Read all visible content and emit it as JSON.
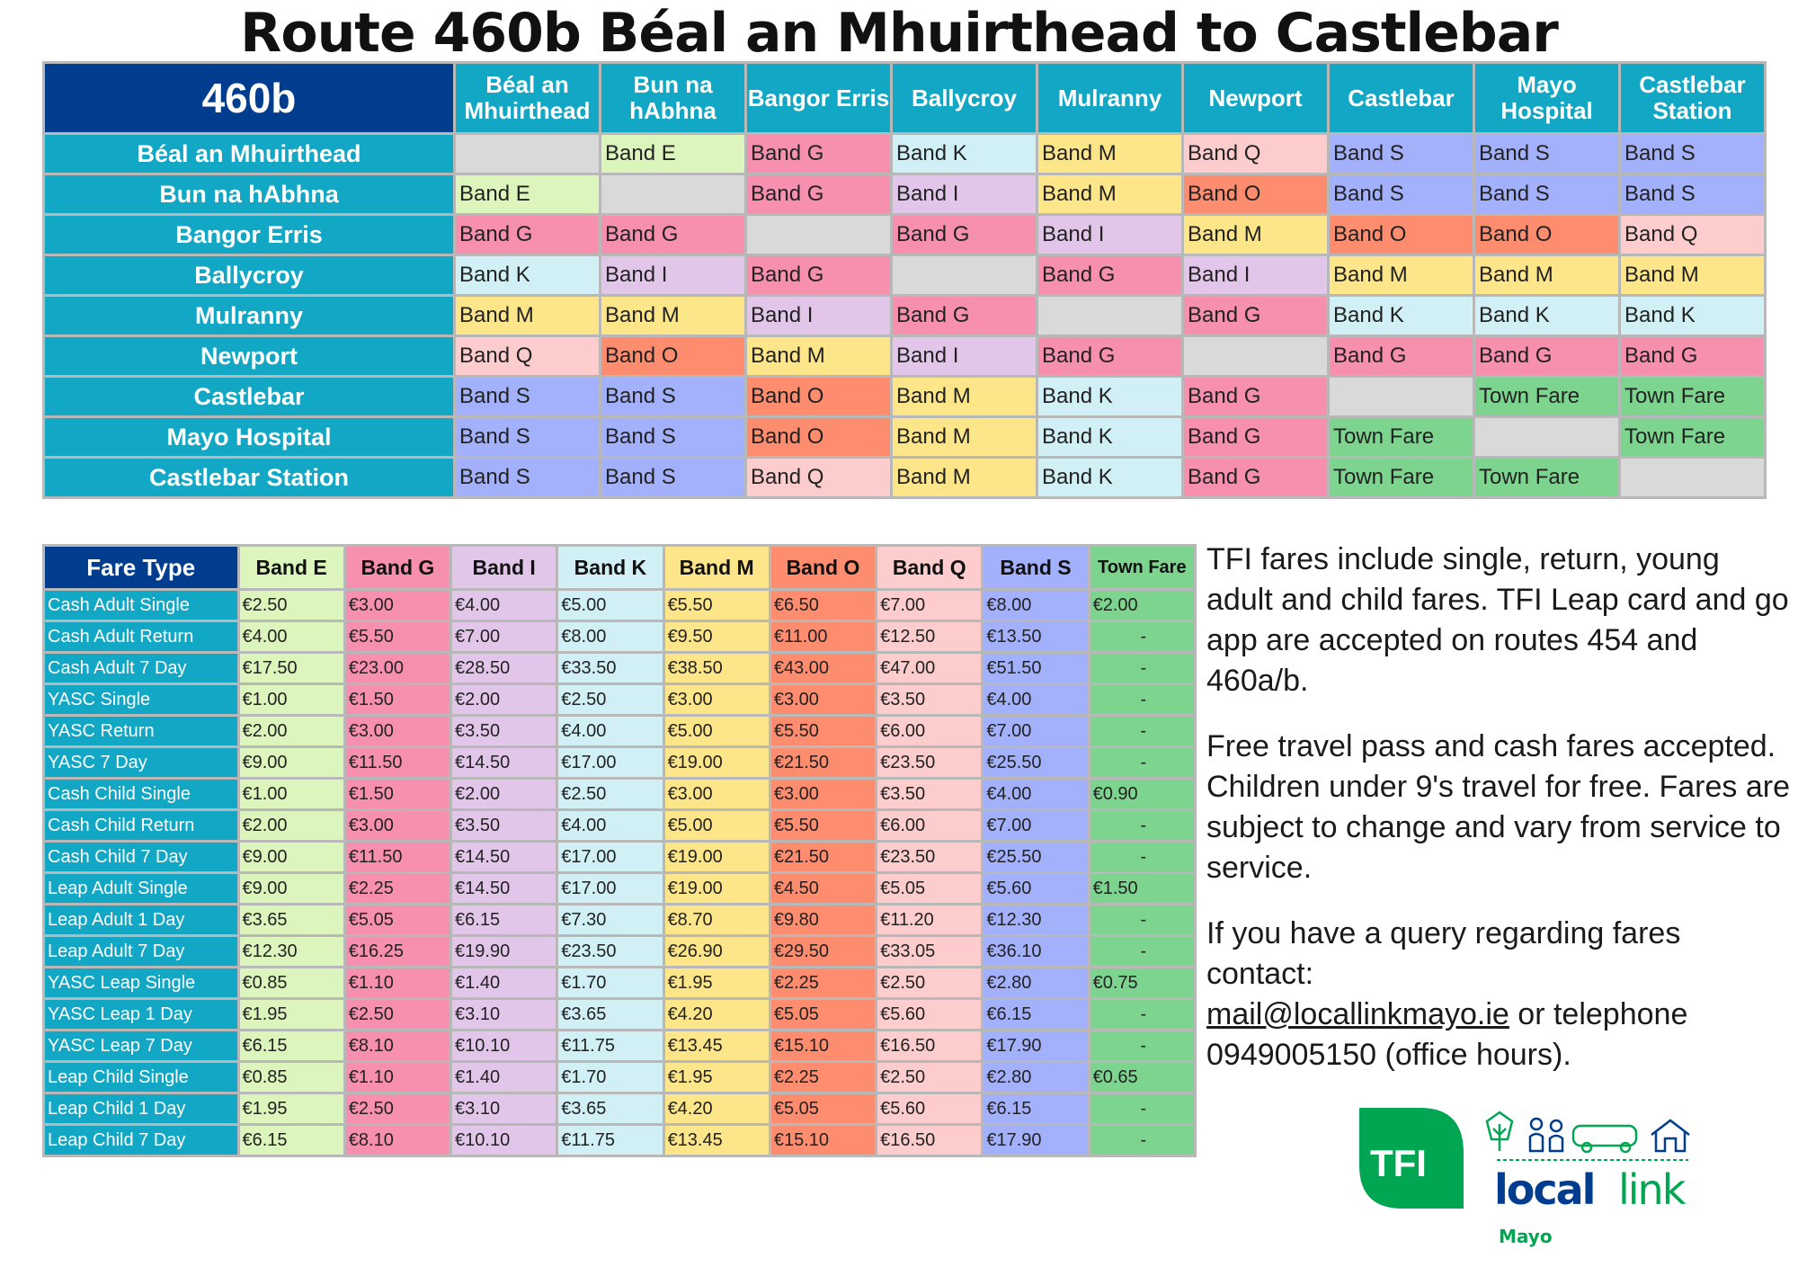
{
  "title": "Route 460b Béal an Mhuirthead to Castlebar",
  "colors": {
    "Band E": "#dcf5bc",
    "Band G": "#f78fae",
    "Band I": "#e2c6ea",
    "Band K": "#d0f0f6",
    "Band M": "#fde58a",
    "Band O": "#fe8c6e",
    "Band Q": "#fdcccc",
    "Band S": "#a3b1fc",
    "Town Fare": "#7dd48f",
    "blank": "#d9d9d9",
    "header": "#12a7c4",
    "corner": "#003d8f"
  },
  "matrix": {
    "corner": "460b",
    "columns": [
      "Béal an Mhuirthead",
      "Bun na hAbhna",
      "Bangor Erris",
      "Ballycroy",
      "Mulranny",
      "Newport",
      "Castlebar",
      "Mayo Hospital",
      "Castlebar Station"
    ],
    "rows": [
      {
        "stop": "Béal an Mhuirthead",
        "cells": [
          "",
          "Band E",
          "Band G",
          "Band K",
          "Band M",
          "Band Q",
          "Band S",
          "Band S",
          "Band S"
        ]
      },
      {
        "stop": "Bun na hAbhna",
        "cells": [
          "Band E",
          "",
          "Band G",
          "Band I",
          "Band M",
          "Band O",
          "Band S",
          "Band S",
          "Band S"
        ]
      },
      {
        "stop": "Bangor Erris",
        "cells": [
          "Band G",
          "Band G",
          "",
          "Band G",
          "Band I",
          "Band M",
          "Band O",
          "Band O",
          "Band Q"
        ]
      },
      {
        "stop": "Ballycroy",
        "cells": [
          "Band K",
          "Band I",
          "Band G",
          "",
          "Band G",
          "Band I",
          "Band M",
          "Band M",
          "Band M"
        ]
      },
      {
        "stop": "Mulranny",
        "cells": [
          "Band M",
          "Band M",
          "Band I",
          "Band G",
          "",
          "Band G",
          "Band K",
          "Band K",
          "Band K"
        ]
      },
      {
        "stop": "Newport",
        "cells": [
          "Band Q",
          "Band O",
          "Band M",
          "Band I",
          "Band G",
          "",
          "Band G",
          "Band G",
          "Band G"
        ]
      },
      {
        "stop": "Castlebar",
        "cells": [
          "Band S",
          "Band S",
          "Band O",
          "Band M",
          "Band K",
          "Band G",
          "",
          "Town Fare",
          "Town Fare"
        ]
      },
      {
        "stop": "Mayo Hospital",
        "cells": [
          "Band S",
          "Band S",
          "Band O",
          "Band M",
          "Band K",
          "Band G",
          "Town Fare",
          "",
          "Town Fare"
        ]
      },
      {
        "stop": "Castlebar Station",
        "cells": [
          "Band S",
          "Band S",
          "Band Q",
          "Band M",
          "Band K",
          "Band G",
          "Town Fare",
          "Town Fare",
          ""
        ]
      }
    ]
  },
  "fares": {
    "corner": "Fare Type",
    "columns": [
      "Band E",
      "Band G",
      "Band I",
      "Band K",
      "Band M",
      "Band O",
      "Band Q",
      "Band S",
      "Town Fare"
    ],
    "rows": [
      {
        "type": "Cash Adult Single",
        "values": [
          "€2.50",
          "€3.00",
          "€4.00",
          "€5.00",
          "€5.50",
          "€6.50",
          "€7.00",
          "€8.00",
          "€2.00"
        ]
      },
      {
        "type": "Cash Adult Return",
        "values": [
          "€4.00",
          "€5.50",
          "€7.00",
          "€8.00",
          "€9.50",
          "€11.00",
          "€12.50",
          "€13.50",
          "-"
        ]
      },
      {
        "type": "Cash Adult 7 Day",
        "values": [
          "€17.50",
          "€23.00",
          "€28.50",
          "€33.50",
          "€38.50",
          "€43.00",
          "€47.00",
          "€51.50",
          "-"
        ]
      },
      {
        "type": "YASC Single",
        "values": [
          "€1.00",
          "€1.50",
          "€2.00",
          "€2.50",
          "€3.00",
          "€3.00",
          "€3.50",
          "€4.00",
          "-"
        ]
      },
      {
        "type": "YASC Return",
        "values": [
          "€2.00",
          "€3.00",
          "€3.50",
          "€4.00",
          "€5.00",
          "€5.50",
          "€6.00",
          "€7.00",
          "-"
        ]
      },
      {
        "type": "YASC 7 Day",
        "values": [
          "€9.00",
          "€11.50",
          "€14.50",
          "€17.00",
          "€19.00",
          "€21.50",
          "€23.50",
          "€25.50",
          "-"
        ]
      },
      {
        "type": "Cash Child Single",
        "values": [
          "€1.00",
          "€1.50",
          "€2.00",
          "€2.50",
          "€3.00",
          "€3.00",
          "€3.50",
          "€4.00",
          "€0.90"
        ]
      },
      {
        "type": "Cash Child Return",
        "values": [
          "€2.00",
          "€3.00",
          "€3.50",
          "€4.00",
          "€5.00",
          "€5.50",
          "€6.00",
          "€7.00",
          "-"
        ]
      },
      {
        "type": "Cash Child 7 Day",
        "values": [
          "€9.00",
          "€11.50",
          "€14.50",
          "€17.00",
          "€19.00",
          "€21.50",
          "€23.50",
          "€25.50",
          "-"
        ]
      },
      {
        "type": "Leap Adult Single",
        "values": [
          "€9.00",
          "€2.25",
          "€14.50",
          "€17.00",
          "€19.00",
          "€4.50",
          "€5.05",
          "€5.60",
          "€1.50"
        ]
      },
      {
        "type": "Leap Adult 1 Day",
        "values": [
          "€3.65",
          "€5.05",
          "€6.15",
          "€7.30",
          "€8.70",
          "€9.80",
          "€11.20",
          "€12.30",
          "-"
        ]
      },
      {
        "type": "Leap Adult 7 Day",
        "values": [
          "€12.30",
          "€16.25",
          "€19.90",
          "€23.50",
          "€26.90",
          "€29.50",
          "€33.05",
          "€36.10",
          "-"
        ]
      },
      {
        "type": "YASC Leap Single",
        "values": [
          "€0.85",
          "€1.10",
          "€1.40",
          "€1.70",
          "€1.95",
          "€2.25",
          "€2.50",
          "€2.80",
          "€0.75"
        ]
      },
      {
        "type": "YASC Leap 1 Day",
        "values": [
          "€1.95",
          "€2.50",
          "€3.10",
          "€3.65",
          "€4.20",
          "€5.05",
          "€5.60",
          "€6.15",
          "-"
        ]
      },
      {
        "type": "YASC Leap 7 Day",
        "values": [
          "€6.15",
          "€8.10",
          "€10.10",
          "€11.75",
          "€13.45",
          "€15.10",
          "€16.50",
          "€17.90",
          "-"
        ]
      },
      {
        "type": "Leap Child Single",
        "values": [
          "€0.85",
          "€1.10",
          "€1.40",
          "€1.70",
          "€1.95",
          "€2.25",
          "€2.50",
          "€2.80",
          "€0.65"
        ]
      },
      {
        "type": "Leap Child 1 Day",
        "values": [
          "€1.95",
          "€2.50",
          "€3.10",
          "€3.65",
          "€4.20",
          "€5.05",
          "€5.60",
          "€6.15",
          "-"
        ]
      },
      {
        "type": "Leap Child 7 Day",
        "values": [
          "€6.15",
          "€8.10",
          "€10.10",
          "€11.75",
          "€13.45",
          "€15.10",
          "€16.50",
          "€17.90",
          "-"
        ]
      }
    ]
  },
  "info": {
    "p1": "TFI fares include single, return, young adult and child fares. TFI Leap card and go app are accepted on routes 454 and 460a/b.",
    "p2": "Free travel pass and cash fares accepted. Children under 9's travel for free. Fares are subject to change and vary from service to service.",
    "p3_before": "If you have a query regarding fares contact:",
    "email": "mail@locallinkmayo.ie",
    "p3_after": " or telephone 0949005150 (office hours)."
  },
  "logo": {
    "tfi": "TFI",
    "local": "local",
    "link": "link",
    "region": "Mayo"
  }
}
